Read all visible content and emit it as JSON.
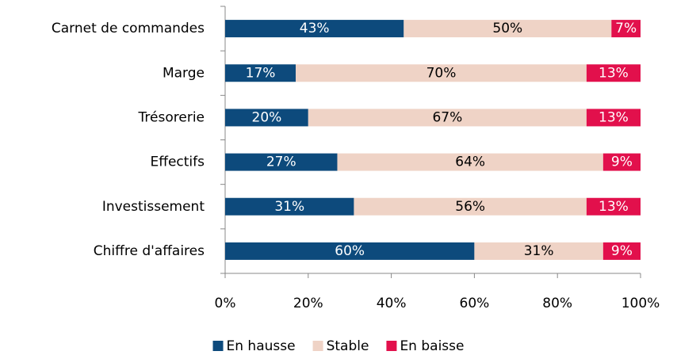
{
  "chart_data": {
    "type": "stacked-bar-horizontal",
    "categories": [
      "Carnet de commandes",
      "Marge",
      "Trésorerie",
      "Effectifs",
      "Investissement",
      "Chiffre d'affaires"
    ],
    "series": [
      {
        "name": "En hausse",
        "color": "#0d4a7c",
        "values": [
          43,
          17,
          20,
          27,
          31,
          60
        ],
        "value_labels": [
          "43%",
          "17%",
          "20%",
          "27%",
          "31%",
          "60%"
        ]
      },
      {
        "name": "Stable",
        "color": "#efd3c6",
        "values": [
          50,
          70,
          67,
          64,
          56,
          31
        ],
        "value_labels": [
          "50%",
          "70%",
          "67%",
          "64%",
          "56%",
          "31%"
        ]
      },
      {
        "name": "En baisse",
        "color": "#e2104c",
        "values": [
          7,
          13,
          13,
          9,
          13,
          9
        ],
        "value_labels": [
          "7%",
          "13%",
          "13%",
          "9%",
          "13%",
          "9%"
        ]
      }
    ],
    "xlim": [
      0,
      100
    ],
    "xticks": [
      {
        "value": 0,
        "label": "0%"
      },
      {
        "value": 20,
        "label": "20%"
      },
      {
        "value": 40,
        "label": "40%"
      },
      {
        "value": 60,
        "label": "60%"
      },
      {
        "value": 80,
        "label": "80%"
      },
      {
        "value": 100,
        "label": "100%"
      }
    ],
    "legend": "bottom"
  }
}
